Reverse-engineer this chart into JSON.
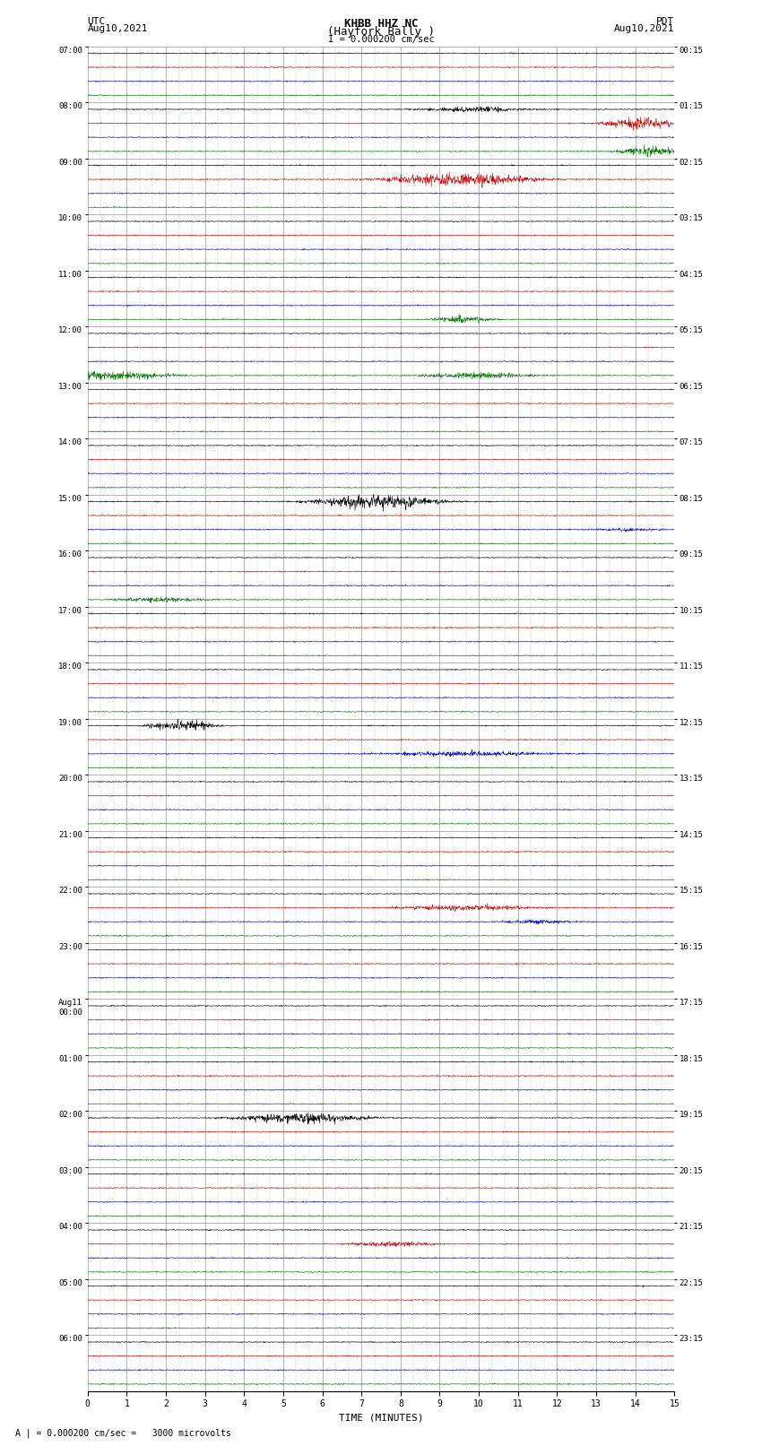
{
  "title_line1": "KHBB HHZ NC",
  "title_line2": "(Hayfork Bally )",
  "title_line3": "I = 0.000200 cm/sec",
  "label_left_top": "UTC",
  "label_left_date": "Aug10,2021",
  "label_right_top": "PDT",
  "label_right_date": "Aug10,2021",
  "xlabel": "TIME (MINUTES)",
  "bottom_note": "= 0.000200 cm/sec =   3000 microvolts",
  "scale_label": "A |",
  "utc_hour_labels": [
    "07:00",
    "08:00",
    "09:00",
    "10:00",
    "11:00",
    "12:00",
    "13:00",
    "14:00",
    "15:00",
    "16:00",
    "17:00",
    "18:00",
    "19:00",
    "20:00",
    "21:00",
    "22:00",
    "23:00",
    "Aug11\n00:00",
    "01:00",
    "02:00",
    "03:00",
    "04:00",
    "05:00",
    "06:00"
  ],
  "pdt_hour_labels": [
    "00:15",
    "01:15",
    "02:15",
    "03:15",
    "04:15",
    "05:15",
    "06:15",
    "07:15",
    "08:15",
    "09:15",
    "10:15",
    "11:15",
    "12:15",
    "13:15",
    "14:15",
    "15:15",
    "16:15",
    "17:15",
    "18:15",
    "19:15",
    "20:15",
    "21:15",
    "22:15",
    "23:15"
  ],
  "n_hours": 24,
  "traces_per_hour": 4,
  "channel_colors": [
    "#000000",
    "#cc0000",
    "#0000cc",
    "#007700"
  ],
  "bg_color": "#ffffff",
  "trace_noise_base": 0.018,
  "time_axis_max": 15,
  "grid_color": "#999999",
  "grid_minor_color": "#cccccc",
  "trace_lw": 0.4,
  "samples_per_trace": 1800
}
